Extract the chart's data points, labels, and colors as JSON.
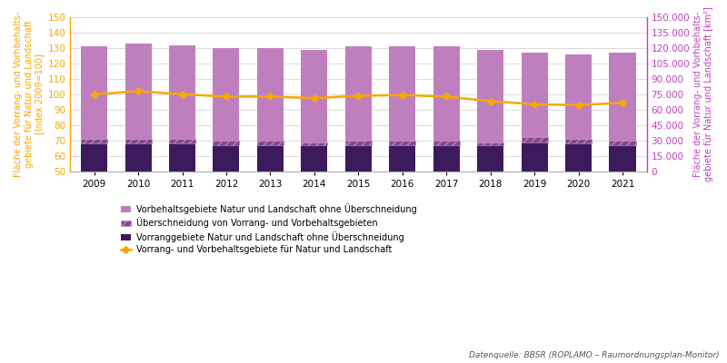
{
  "years": [
    2009,
    2010,
    2011,
    2012,
    2013,
    2014,
    2015,
    2016,
    2017,
    2018,
    2019,
    2020,
    2021
  ],
  "bar_vorrang": [
    18,
    18,
    18,
    17,
    17,
    17,
    17,
    17,
    17,
    17,
    19,
    18,
    17
  ],
  "bar_ueber": [
    3,
    3,
    3,
    3,
    3,
    2,
    3,
    3,
    3,
    2,
    3,
    3,
    3
  ],
  "bar_vorbehalts": [
    60,
    62,
    61,
    60,
    60,
    60,
    61,
    61,
    61,
    60,
    55,
    55,
    57
  ],
  "line_index": [
    100,
    102,
    100,
    98.5,
    98.5,
    97.5,
    99,
    99.5,
    98.5,
    95.5,
    93.5,
    93,
    94.5
  ],
  "ylim_left": [
    50,
    150
  ],
  "ylim_right": [
    0,
    150000
  ],
  "yticks_left": [
    50,
    60,
    70,
    80,
    90,
    100,
    110,
    120,
    130,
    140,
    150
  ],
  "yticks_right": [
    0,
    15000,
    30000,
    45000,
    60000,
    75000,
    90000,
    105000,
    120000,
    135000,
    150000
  ],
  "color_vorbehalts": "#bf7fbf",
  "color_ueber_face": "#7a4a8a",
  "color_ueber_hatch": "#bf7fbf",
  "color_vorrang": "#3d1a5e",
  "color_line": "#f5a800",
  "color_left_axis": "#f5a800",
  "color_right_axis": "#bf40bf",
  "ylabel_left": "Fläche der Vorrang- und Vorhbehalts-\ngebiete für Natur und Landschaft\n[Index 2009=100]",
  "ylabel_right": "Fläche der Vorrang- und Vorhbehalts-\ngebiete für Natur und Landschaft [km²]",
  "legend_labels": [
    "Vorbehaltsgebiete Natur und Landschaft ohne Überschneidung",
    "Überschneidung von Vorrang- und Vorbehaltsgebieten",
    "Vorranggebiete Natur und Landschaft ohne Überschneidung",
    "Vorrang- und Vorbehaltsgebiete für Natur und Landschaft"
  ],
  "source_text": "Datenquelle: BBSR (ROPLAMO – Raumordnungsplan-Monitor)",
  "background_color": "#ffffff",
  "grid_color": "#cccccc"
}
